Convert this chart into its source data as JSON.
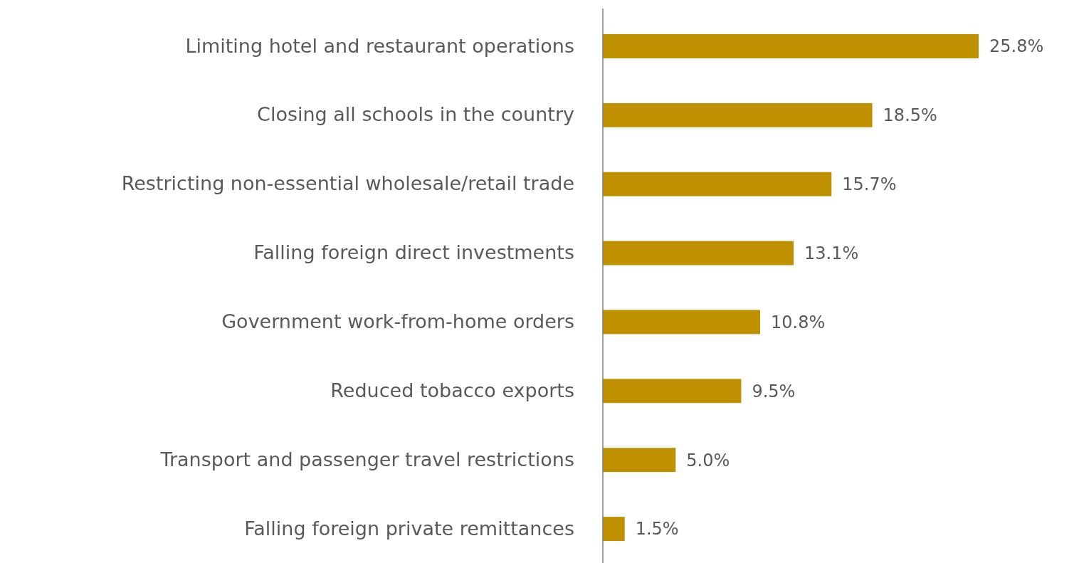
{
  "chart_data": {
    "type": "bar",
    "orientation": "horizontal",
    "categories": [
      "Limiting hotel and restaurant operations",
      "Closing all schools in the country",
      "Restricting non-essential wholesale/retail trade",
      "Falling foreign direct investments",
      "Government work-from-home orders",
      "Reduced tobacco exports",
      "Transport and passenger travel restrictions",
      "Falling foreign private remittances"
    ],
    "values": [
      25.8,
      18.5,
      15.7,
      13.1,
      10.8,
      9.5,
      5.0,
      1.5
    ],
    "value_labels": [
      "25.8%",
      "18.5%",
      "15.7%",
      "13.1%",
      "10.8%",
      "9.5%",
      "5.0%",
      "1.5%"
    ],
    "color": "#bf9000"
  }
}
